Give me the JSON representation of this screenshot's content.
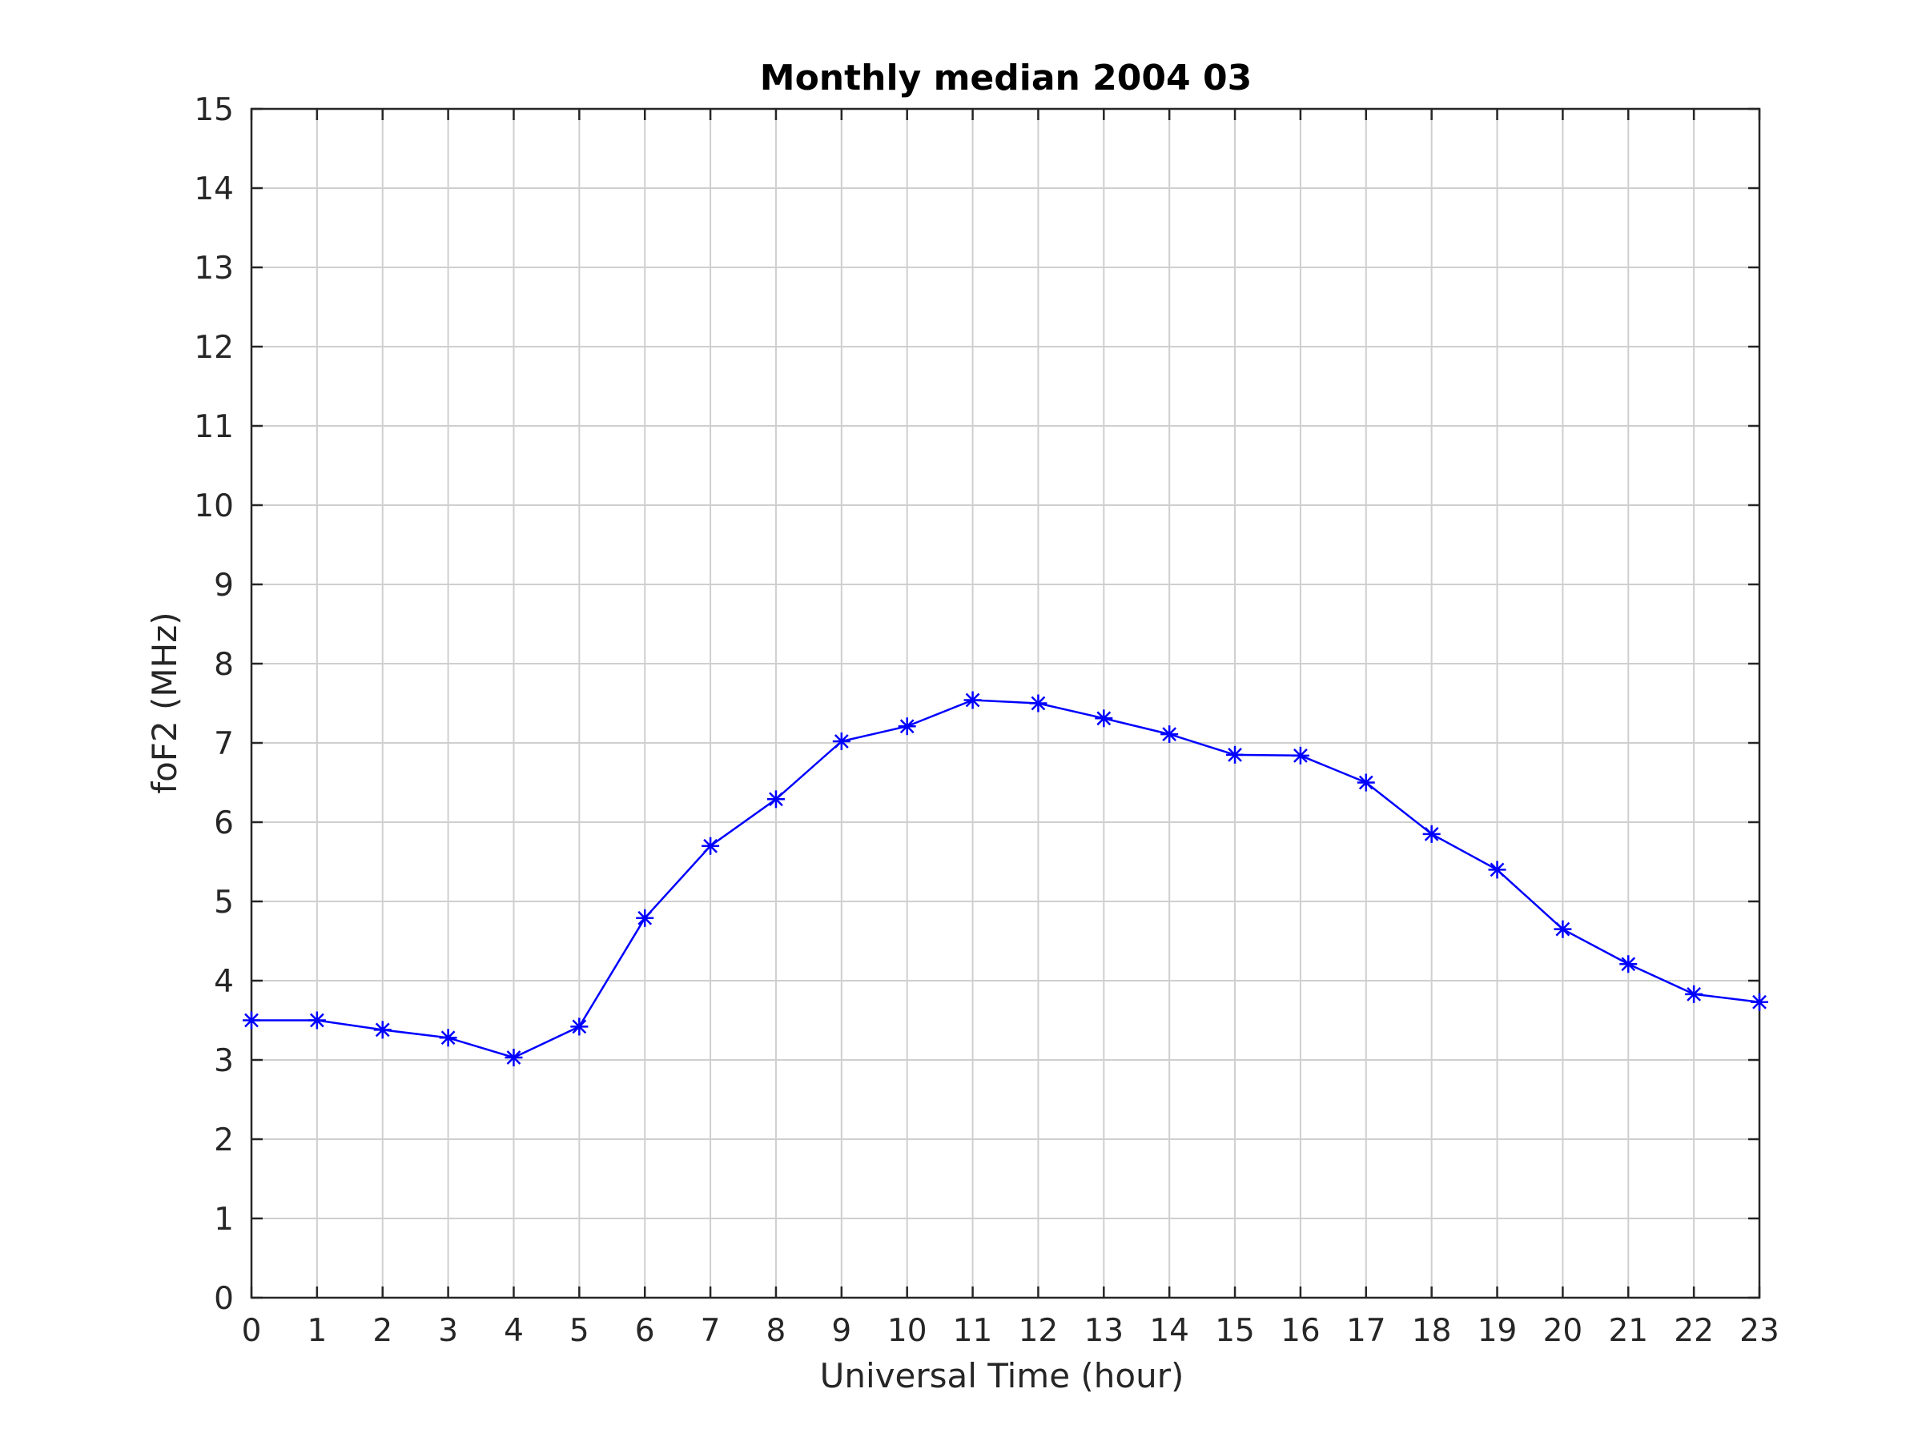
{
  "chart_data": {
    "type": "line",
    "title": "Monthly median 2004 03",
    "xlabel": "Universal Time (hour)",
    "ylabel": "foF2 (MHz)",
    "xlim": [
      0,
      23
    ],
    "ylim": [
      0,
      15
    ],
    "xticks": [
      "0",
      "1",
      "2",
      "3",
      "4",
      "5",
      "6",
      "7",
      "8",
      "9",
      "10",
      "11",
      "12",
      "13",
      "14",
      "15",
      "16",
      "17",
      "18",
      "19",
      "20",
      "21",
      "22",
      "23"
    ],
    "yticks": [
      "0",
      "1",
      "2",
      "3",
      "4",
      "5",
      "6",
      "7",
      "8",
      "9",
      "10",
      "11",
      "12",
      "13",
      "14",
      "15"
    ],
    "grid": true,
    "series": [
      {
        "color": "#0000ff",
        "marker": "asterisk",
        "x": [
          0,
          1,
          2,
          3,
          4,
          5,
          6,
          7,
          8,
          9,
          10,
          11,
          12,
          13,
          14,
          15,
          16,
          17,
          18,
          19,
          20,
          21,
          22,
          23
        ],
        "y": [
          3.5,
          3.5,
          3.38,
          3.28,
          3.03,
          3.42,
          4.79,
          5.7,
          6.29,
          7.02,
          7.21,
          7.54,
          7.5,
          7.31,
          7.11,
          6.85,
          6.84,
          6.5,
          5.85,
          5.4,
          4.65,
          4.21,
          3.83,
          3.73
        ]
      }
    ]
  }
}
